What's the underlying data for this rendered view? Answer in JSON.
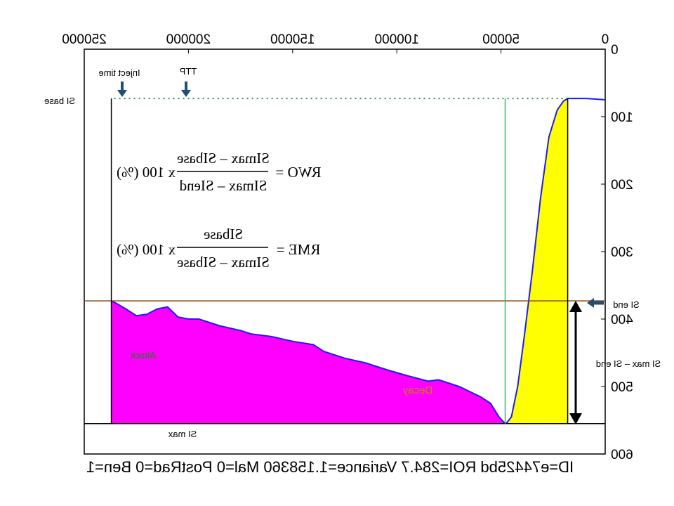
{
  "chart_data": {
    "type": "area",
    "mirrored_horizontally": true,
    "x_ticks": [
      "0",
      "50000",
      "100000",
      "150000",
      "200000",
      "250000"
    ],
    "y_ticks": [
      "0",
      "100",
      "200",
      "300",
      "400",
      "500",
      "600"
    ],
    "xlim": [
      0,
      250000
    ],
    "ylim": [
      0,
      600
    ],
    "y_inverted": true,
    "si_base": 73,
    "si_max": 555,
    "si_end": 373,
    "inject_time": 18000,
    "ttp": 48000,
    "end_time": 237000,
    "series": [
      {
        "name": "Attack",
        "color": "#ffff00",
        "x": [
          18000,
          20000,
          23000,
          27000,
          31000,
          35000,
          39000,
          42000,
          45000,
          47000,
          48000
        ],
        "y": [
          73,
          77,
          90,
          130,
          220,
          330,
          430,
          500,
          545,
          553,
          555
        ]
      },
      {
        "name": "Decay",
        "color": "#ff00ff",
        "x": [
          48000,
          51000,
          55000,
          60000,
          70000,
          80000,
          85000,
          95000,
          105000,
          115000,
          125000,
          135000,
          140000,
          150000,
          160000,
          170000,
          175000,
          185000,
          195000,
          200000,
          205000,
          210000,
          215000,
          220000,
          225000,
          230000,
          235000,
          237000
        ],
        "y": [
          555,
          545,
          525,
          515,
          500,
          490,
          492,
          484,
          475,
          465,
          458,
          448,
          438,
          433,
          426,
          422,
          417,
          410,
          400,
          400,
          397,
          382,
          385,
          393,
          395,
          385,
          376,
          373
        ]
      }
    ],
    "annotations": {
      "si_base": "SI base",
      "si_max": "SI max",
      "si_end": "SI end",
      "inject_time": "Inject time",
      "ttp": "TTP",
      "attack": "Attack",
      "decay": "Decay",
      "amplitude": "SI max – SI end"
    },
    "formulas": {
      "rwo_label": "RWO =",
      "rwo_numerator": "SImax – SIbase",
      "rwo_denominator": "SImax – SIend",
      "rwo_suffix": "x 100 (%)",
      "rme_label": "RME =",
      "rme_numerator": "SIbase",
      "rme_denominator": "SImax – SIbase",
      "rme_suffix": "x 100 (%)"
    },
    "footer": "ID=e74425bd ROI=284.7 Variance=1.158360 Mal=0 PostRad=0 Ben=1"
  }
}
